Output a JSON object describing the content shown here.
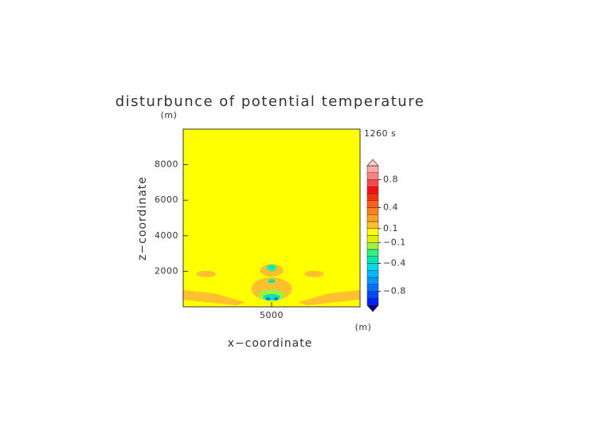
{
  "chart_data": {
    "type": "contour",
    "title": "disturbunce of potential temperature",
    "x_label": "x−coordinate",
    "y_label": "z−coordinate",
    "x_unit": "(m)",
    "y_unit": "(m)",
    "time_label": "1260 s",
    "xlim": [
      0,
      10000
    ],
    "ylim": [
      0,
      10000
    ],
    "xticks": [
      5000
    ],
    "yticks": [
      2000,
      4000,
      6000,
      8000
    ],
    "background_value": 0.05,
    "regions": [
      {
        "value": 0.15,
        "points": [
          [
            0,
            950
          ],
          [
            1800,
            750
          ],
          [
            3500,
            250
          ],
          [
            3000,
            80
          ],
          [
            1500,
            250
          ],
          [
            0,
            400
          ]
        ]
      },
      {
        "value": 0.15,
        "points": [
          [
            10000,
            950
          ],
          [
            8200,
            750
          ],
          [
            6500,
            250
          ],
          [
            7000,
            80
          ],
          [
            8500,
            250
          ],
          [
            10000,
            400
          ]
        ]
      },
      {
        "value": 0.15,
        "cx": 1300,
        "cz": 1850,
        "rx": 550,
        "rz": 180
      },
      {
        "value": 0.15,
        "cx": 7400,
        "cz": 1850,
        "rx": 550,
        "rz": 180
      },
      {
        "value": 0.15,
        "cx": 5000,
        "cz": 1000,
        "rx": 1150,
        "rz": 650
      },
      {
        "value": 0.15,
        "cx": 5000,
        "cz": 2050,
        "rx": 650,
        "rz": 350
      },
      {
        "value": -0.15,
        "cx": 5000,
        "cz": 650,
        "rx": 750,
        "rz": 330
      },
      {
        "value": -0.35,
        "cx": 5000,
        "cz": 550,
        "rx": 480,
        "rz": 170
      },
      {
        "value": -0.25,
        "cx": 5000,
        "cz": 2200,
        "rx": 280,
        "rz": 200
      },
      {
        "value": -0.45,
        "cx": 5000,
        "cz": 2230,
        "rx": 130,
        "rz": 90
      },
      {
        "value": -0.35,
        "cx": 5000,
        "cz": 1450,
        "rx": 200,
        "rz": 110
      },
      {
        "value": -0.75,
        "cx": 4800,
        "cz": 450,
        "rx": 130,
        "rz": 80
      },
      {
        "value": -0.75,
        "cx": 5250,
        "cz": 450,
        "rx": 130,
        "rz": 80
      }
    ],
    "colorbar": {
      "levels": [
        -1.0,
        -0.9,
        -0.8,
        -0.7,
        -0.6,
        -0.5,
        -0.4,
        -0.3,
        -0.2,
        -0.1,
        0.0,
        0.1,
        0.2,
        0.3,
        0.4,
        0.5,
        0.6,
        0.7,
        0.8,
        0.9,
        1.0
      ],
      "colors": [
        "#0020ff",
        "#0048ff",
        "#0070ff",
        "#0098ff",
        "#00b8ff",
        "#00d8f0",
        "#00e8b0",
        "#30f080",
        "#a0f040",
        "#e0f000",
        "#ffff00",
        "#ffc030",
        "#ffa020",
        "#ff8020",
        "#ff6018",
        "#ff3010",
        "#ff1010",
        "#ff4848",
        "#ff8080",
        "#ffa8a8"
      ],
      "under_color": "#000090",
      "over_color": "#ffd0d0",
      "ticks": [
        {
          "value": 0.8,
          "label": "0.8"
        },
        {
          "value": 0.4,
          "label": "0.4"
        },
        {
          "value": 0.1,
          "label": "0.1"
        },
        {
          "value": -0.1,
          "label": "−0.1"
        },
        {
          "value": -0.4,
          "label": "−0.4"
        },
        {
          "value": -0.8,
          "label": "−0.8"
        }
      ]
    }
  }
}
